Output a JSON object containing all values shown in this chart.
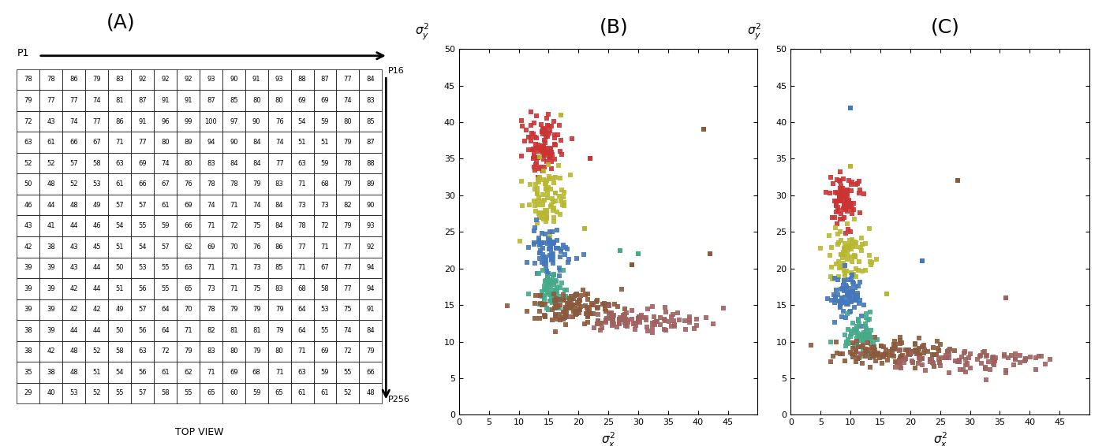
{
  "table_data": [
    [
      78,
      78,
      86,
      79,
      83,
      92,
      92,
      92,
      93,
      90,
      91,
      93,
      88,
      87,
      77,
      84
    ],
    [
      79,
      77,
      77,
      74,
      81,
      87,
      91,
      91,
      87,
      85,
      80,
      80,
      69,
      69,
      74,
      83
    ],
    [
      72,
      43,
      74,
      77,
      86,
      91,
      96,
      99,
      100,
      97,
      90,
      76,
      54,
      59,
      80,
      85
    ],
    [
      63,
      61,
      66,
      67,
      71,
      77,
      80,
      89,
      94,
      90,
      84,
      74,
      51,
      51,
      79,
      87
    ],
    [
      52,
      52,
      57,
      58,
      63,
      69,
      74,
      80,
      83,
      84,
      84,
      77,
      63,
      59,
      78,
      88
    ],
    [
      50,
      48,
      52,
      53,
      61,
      66,
      67,
      76,
      78,
      78,
      79,
      83,
      71,
      68,
      79,
      89
    ],
    [
      46,
      44,
      48,
      49,
      57,
      57,
      61,
      69,
      74,
      71,
      74,
      84,
      73,
      73,
      82,
      90
    ],
    [
      43,
      41,
      44,
      46,
      54,
      55,
      59,
      66,
      71,
      72,
      75,
      84,
      78,
      72,
      79,
      93
    ],
    [
      42,
      38,
      43,
      45,
      51,
      54,
      57,
      62,
      69,
      70,
      76,
      86,
      77,
      71,
      77,
      92
    ],
    [
      39,
      39,
      43,
      44,
      50,
      53,
      55,
      63,
      71,
      71,
      73,
      85,
      71,
      67,
      77,
      94
    ],
    [
      39,
      39,
      42,
      44,
      51,
      56,
      55,
      65,
      73,
      71,
      75,
      83,
      68,
      58,
      77,
      94
    ],
    [
      39,
      39,
      42,
      42,
      49,
      57,
      64,
      70,
      78,
      79,
      79,
      79,
      64,
      53,
      75,
      91
    ],
    [
      38,
      39,
      44,
      44,
      50,
      56,
      64,
      71,
      82,
      81,
      81,
      79,
      64,
      55,
      74,
      84
    ],
    [
      38,
      42,
      48,
      52,
      58,
      63,
      72,
      79,
      83,
      80,
      79,
      80,
      71,
      69,
      72,
      79
    ],
    [
      35,
      38,
      48,
      51,
      54,
      56,
      61,
      62,
      71,
      69,
      68,
      71,
      63,
      59,
      55,
      66
    ],
    [
      29,
      40,
      53,
      52,
      55,
      57,
      58,
      55,
      65,
      60,
      59,
      65,
      61,
      61,
      52,
      48
    ]
  ],
  "label_A": "(A)",
  "label_B": "(B)",
  "label_C": "(C)",
  "top_view_label": "TOP VIEW",
  "cluster_params_B": [
    [
      14.0,
      37.0,
      1.5,
      2.0,
      100,
      "#cc3333"
    ],
    [
      15.0,
      29.5,
      1.8,
      2.2,
      80,
      "#b8b830"
    ],
    [
      15.0,
      22.5,
      1.5,
      1.8,
      80,
      "#4477bb"
    ],
    [
      15.5,
      17.0,
      1.3,
      1.5,
      65,
      "#44aa88"
    ],
    [
      19.5,
      14.5,
      4.0,
      1.2,
      130,
      "#8b5a3c"
    ],
    [
      31.0,
      13.0,
      5.5,
      0.8,
      90,
      "#a06060"
    ]
  ],
  "outliers_B": [
    [
      17.0,
      41.0,
      "#b8b830"
    ],
    [
      21.0,
      25.5,
      "#b8b830"
    ],
    [
      22.0,
      35.0,
      "#cc3333"
    ],
    [
      27.0,
      22.5,
      "#44aa88"
    ],
    [
      30.0,
      22.0,
      "#44aa88"
    ],
    [
      29.0,
      20.5,
      "#8b5a3c"
    ],
    [
      41.0,
      39.0,
      "#8b5a3c"
    ],
    [
      42.0,
      22.0,
      "#8b5a3c"
    ]
  ],
  "cluster_params_C": [
    [
      9.0,
      29.5,
      1.3,
      2.0,
      90,
      "#cc3333"
    ],
    [
      9.5,
      22.0,
      1.5,
      2.0,
      75,
      "#b8b830"
    ],
    [
      9.5,
      16.0,
      1.3,
      1.5,
      75,
      "#4477bb"
    ],
    [
      11.5,
      11.0,
      1.3,
      1.3,
      60,
      "#44aa88"
    ],
    [
      16.5,
      8.5,
      4.5,
      1.0,
      130,
      "#8b5a3c"
    ],
    [
      30.0,
      7.5,
      6.0,
      0.8,
      90,
      "#a06060"
    ]
  ],
  "outliers_C": [
    [
      10.0,
      42.0,
      "#4477bb"
    ],
    [
      10.0,
      34.0,
      "#b8b830"
    ],
    [
      28.0,
      32.0,
      "#8b5a3c"
    ],
    [
      22.0,
      21.0,
      "#4477bb"
    ],
    [
      16.0,
      16.5,
      "#b8b830"
    ],
    [
      36.0,
      16.0,
      "#a06060"
    ]
  ]
}
